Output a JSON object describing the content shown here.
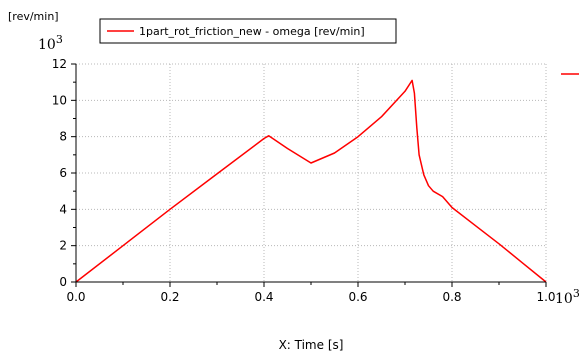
{
  "chart_data": {
    "type": "line",
    "y_unit_label": "[rev/min]",
    "y_multiplier_label": "10",
    "y_multiplier_exponent": "3",
    "x_multiplier_label": "10",
    "x_multiplier_exponent": "3",
    "xlabel": "X: Time [s]",
    "xlim": [
      0.0,
      1.0
    ],
    "ylim": [
      0,
      12
    ],
    "x_ticks": [
      0.0,
      0.2,
      0.4,
      0.6,
      0.8,
      1.0
    ],
    "x_tick_labels": [
      "0.0",
      "0.2",
      "0.4",
      "0.6",
      "0.8",
      "1.0"
    ],
    "y_ticks": [
      0,
      2,
      4,
      6,
      8,
      10,
      12
    ],
    "y_tick_labels": [
      "0",
      "2",
      "4",
      "6",
      "8",
      "10",
      "12"
    ],
    "grid": true,
    "legend_position": "top",
    "series": [
      {
        "name": "1part_rot_friction_new - omega [rev/min]",
        "color": "#ff0000",
        "x": [
          0.0,
          0.1,
          0.2,
          0.3,
          0.4,
          0.41,
          0.45,
          0.5,
          0.55,
          0.6,
          0.65,
          0.7,
          0.715,
          0.72,
          0.725,
          0.73,
          0.74,
          0.75,
          0.76,
          0.78,
          0.8,
          0.85,
          0.9,
          0.95,
          1.0
        ],
        "y": [
          0.0,
          2.0,
          4.0,
          5.95,
          7.9,
          8.05,
          7.35,
          6.55,
          7.1,
          8.0,
          9.1,
          10.5,
          11.1,
          10.4,
          8.5,
          7.0,
          5.9,
          5.3,
          5.0,
          4.7,
          4.1,
          3.1,
          2.1,
          1.05,
          0.0
        ]
      }
    ]
  }
}
